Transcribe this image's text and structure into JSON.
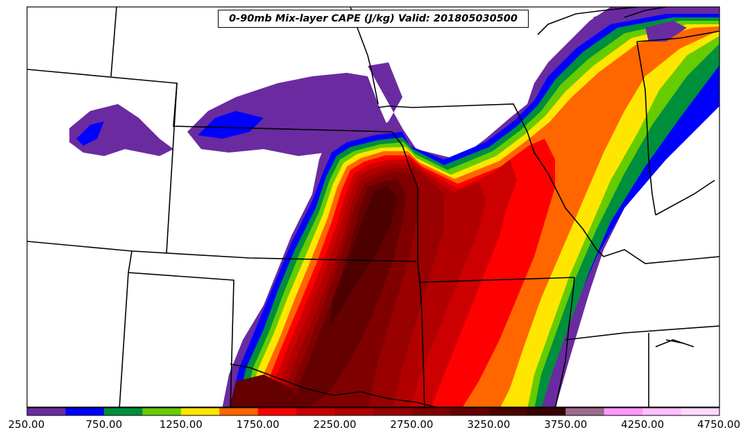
{
  "title": "0-90mb Mix-layer CAPE (J/kg) Valid: 201805030500",
  "colorbar": {
    "labels": [
      "250.00",
      "750.00",
      "1250.00",
      "1750.00",
      "2250.00",
      "2750.00",
      "3250.00",
      "3750.00",
      "4250.00",
      "4750.00"
    ],
    "colors": [
      "#6a2ba0",
      "#0000ff",
      "#008f3c",
      "#66cc00",
      "#ffe600",
      "#ff6600",
      "#ff0000",
      "#cc0000",
      "#b20000",
      "#990000",
      "#800000",
      "#650000",
      "#4d0000",
      "#3a0000",
      "#9e6b8e",
      "#ff99ff",
      "#ffbfff",
      "#ffd9ff"
    ]
  }
}
